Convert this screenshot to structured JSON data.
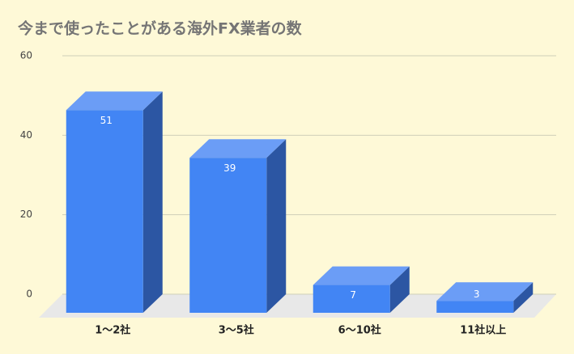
{
  "chart_data": {
    "type": "bar3d",
    "title": "今まで使ったことがある海外FX業者の数",
    "categories": [
      "1〜2社",
      "3〜5社",
      "6〜10社",
      "11社以上"
    ],
    "values": [
      51,
      39,
      7,
      3
    ],
    "color": "#4285f4",
    "ylim": [
      0,
      60
    ],
    "yticks": [
      0,
      20,
      40,
      60
    ],
    "grid": true
  }
}
